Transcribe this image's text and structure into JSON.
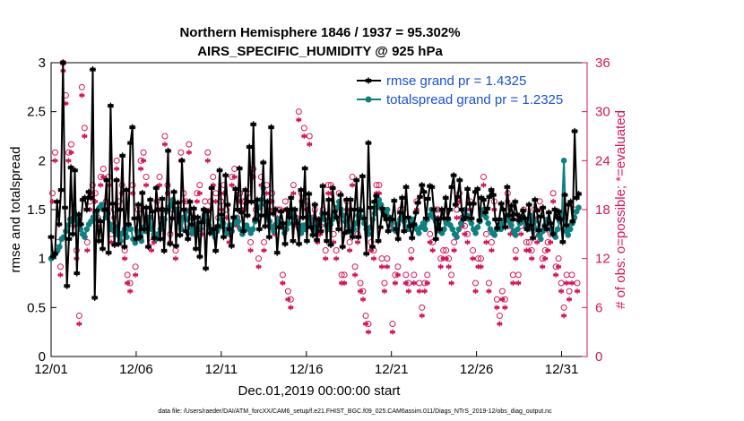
{
  "chart_data": {
    "type": "line",
    "title": "Northern Hemisphere 1846 / 1937 = 95.302%",
    "subtitle": "AIRS_SPECIFIC_HUMIDITY @ 925 hPa",
    "xlabel": "Dec.01,2019 00:00:00 start",
    "ylabel": "rmse and totalspread",
    "y2label": "# of obs: o=possible; *=evaluated",
    "xlim": [
      0,
      31.5
    ],
    "ylim": [
      0,
      3
    ],
    "y2lim": [
      0,
      36
    ],
    "x_ticks": [
      {
        "value": 0,
        "label": "12/01"
      },
      {
        "value": 5,
        "label": "12/06"
      },
      {
        "value": 10,
        "label": "12/11"
      },
      {
        "value": 15,
        "label": "12/16"
      },
      {
        "value": 20,
        "label": "12/21"
      },
      {
        "value": 25,
        "label": "12/26"
      },
      {
        "value": 30,
        "label": "12/31"
      }
    ],
    "y_ticks": [
      "0",
      "0.5",
      "1",
      "1.5",
      "2",
      "2.5",
      "3"
    ],
    "y2_ticks": [
      "0",
      "6",
      "12",
      "18",
      "24",
      "30",
      "36"
    ],
    "colors": {
      "rmse": "#000000",
      "spread": "#0f8080",
      "obs": "#d6145a",
      "legend_text": "#1a4fd6"
    },
    "series": [
      {
        "name": "rmse grand pr = 1.4325",
        "values": [
          1.22,
          1.02,
          1.05,
          1.58,
          1.35,
          1.7,
          3.0,
          1.52,
          0.72,
          1.2,
          1.93,
          1.25,
          1.9,
          0.85,
          1.45,
          1.35,
          1.6,
          1.62,
          1.5,
          1.68,
          1.62,
          2.93,
          0.6,
          1.49,
          1.18,
          1.38,
          1.1,
          1.5,
          1.8,
          1.06,
          2.56,
          1.56,
          1.14,
          1.8,
          1.15,
          1.5,
          2.05,
          1.12,
          1.7,
          1.35,
          2.18,
          2.34,
          1.41,
          1.2,
          1.55,
          1.22,
          1.67,
          1.3,
          1.52,
          1.12,
          1.6,
          1.48,
          1.21,
          1.72,
          1.5,
          1.2,
          1.61,
          1.08,
          1.5,
          2.1,
          1.15,
          1.41,
          1.68,
          1.13,
          1.57,
          1.24,
          2.0,
          1.5,
          1.28,
          1.2,
          1.58,
          1.35,
          1.51,
          1.1,
          1.42,
          1.02,
          1.37,
          1.5,
          0.9,
          1.48,
          1.26,
          1.72,
          1.3,
          1.08,
          1.33,
          1.9,
          1.45,
          1.22,
          1.85,
          1.55,
          1.3,
          1.13,
          1.42,
          1.71,
          1.5,
          1.92,
          1.47,
          1.28,
          1.7,
          1.44,
          2.14,
          1.58,
          2.37,
          1.4,
          1.6,
          1.3,
          1.44,
          1.98,
          1.33,
          1.58,
          1.22,
          2.34,
          1.46,
          1.5,
          1.06,
          1.32,
          1.48,
          1.36,
          1.15,
          1.5,
          1.42,
          1.62,
          1.18,
          1.5,
          1.36,
          1.15,
          1.7,
          1.42,
          1.92,
          1.18,
          1.66,
          1.32,
          1.24,
          1.55,
          1.19,
          1.4,
          1.28,
          1.74,
          1.46,
          1.18,
          1.6,
          1.14,
          1.72,
          1.48,
          1.42,
          1.3,
          1.65,
          1.12,
          1.26,
          1.6,
          1.28,
          1.6,
          1.22,
          1.5,
          1.8,
          1.22,
          1.49,
          1.84,
          1.41,
          1.05,
          2.18,
          1.52,
          1.12,
          1.58,
          1.64,
          1.18,
          1.32,
          1.51,
          1.44,
          1.4,
          1.28,
          1.41,
          1.4,
          1.59,
          1.3,
          1.2,
          1.47,
          1.62,
          1.28,
          1.73,
          1.42,
          1.33,
          1.21,
          1.35,
          1.47,
          1.57,
          1.63,
          1.75,
          1.68,
          1.41,
          1.61,
          1.74,
          1.73,
          1.5,
          1.2,
          1.4,
          1.3,
          1.5,
          1.41,
          1.62,
          1.41,
          1.5,
          1.73,
          1.85,
          1.55,
          1.63,
          1.8,
          1.5,
          1.4,
          1.42,
          1.71,
          1.56,
          1.41,
          1.56,
          1.68,
          1.71,
          1.39,
          1.62,
          1.6,
          1.47,
          1.51,
          1.63,
          1.7,
          1.65,
          1.4,
          1.31,
          1.4,
          1.56,
          1.5,
          1.32,
          1.73,
          1.44,
          1.54,
          1.4,
          1.58,
          1.45,
          1.39,
          1.42,
          1.49,
          1.41,
          1.3,
          1.55,
          1.34,
          1.21,
          1.6,
          1.49,
          1.29,
          1.43,
          1.52,
          1.33,
          1.3,
          1.47,
          1.36,
          1.25,
          1.5,
          1.42,
          1.48,
          1.4,
          1.17,
          1.65,
          1.34,
          1.55,
          1.58,
          1.38,
          2.3,
          1.62,
          1.66
        ]
      },
      {
        "name": "totalspread grand pr = 1.2325",
        "values": [
          1.0,
          1.02,
          1.05,
          1.08,
          1.12,
          1.2,
          1.22,
          1.28,
          1.34,
          1.4,
          1.38,
          1.48,
          1.42,
          1.35,
          1.3,
          1.25,
          1.22,
          1.3,
          1.35,
          1.38,
          1.42,
          1.47,
          1.4,
          1.52,
          1.55,
          1.5,
          1.42,
          1.46,
          1.35,
          1.3,
          1.28,
          1.32,
          1.24,
          1.18,
          1.26,
          1.3,
          1.22,
          1.34,
          1.3,
          1.2,
          1.16,
          1.28,
          1.22,
          1.18,
          1.32,
          1.28,
          1.36,
          1.42,
          1.3,
          1.24,
          1.2,
          1.25,
          1.3,
          1.35,
          1.4,
          1.48,
          1.52,
          1.55,
          1.6,
          1.5,
          1.45,
          1.38,
          1.3,
          1.42,
          1.48,
          1.4,
          1.32,
          1.26,
          1.3,
          1.24,
          1.36,
          1.3,
          1.38,
          1.45,
          1.38,
          1.34,
          1.3,
          1.26,
          1.22,
          1.28,
          1.32,
          1.4,
          1.36,
          1.3,
          1.26,
          1.34,
          1.28,
          1.35,
          1.42,
          1.38,
          1.3,
          1.25,
          1.3,
          1.34,
          1.3,
          1.26,
          1.3,
          1.38,
          1.45,
          1.52,
          1.6,
          1.72,
          1.55,
          1.42,
          1.38,
          1.32,
          1.28,
          1.35,
          1.4,
          1.36,
          1.32,
          1.26,
          1.3,
          1.36,
          1.44,
          1.5,
          1.42,
          1.38,
          1.3,
          1.26,
          1.34,
          1.3,
          1.36,
          1.42,
          1.38,
          1.32,
          1.28,
          1.36,
          1.4,
          1.46,
          1.4,
          1.34,
          1.3,
          1.35,
          1.4,
          1.44,
          1.52,
          1.58,
          1.5,
          1.44,
          1.38,
          1.34,
          1.3,
          1.26,
          1.3,
          1.36,
          1.44,
          1.5,
          1.42,
          1.36,
          1.3,
          1.25,
          1.32,
          1.4,
          1.46,
          1.52,
          1.6,
          1.55,
          1.48,
          1.44,
          1.5,
          1.42,
          1.36,
          1.3,
          1.28,
          1.35,
          1.4,
          1.45,
          1.38,
          1.32,
          1.3,
          1.36,
          1.4,
          1.34,
          1.3,
          1.26,
          1.32,
          1.36,
          1.3,
          1.4,
          1.44,
          1.5,
          1.42,
          1.38,
          1.32,
          1.28,
          1.26,
          1.3,
          1.36,
          1.4,
          1.34,
          1.3,
          1.25,
          1.22,
          1.3,
          1.36,
          1.42,
          1.5,
          1.44,
          1.4,
          1.36,
          1.3,
          1.26,
          1.32,
          1.38,
          1.45,
          1.5,
          1.42,
          1.36,
          1.3,
          1.26,
          1.24,
          1.3,
          1.34,
          1.3,
          1.36,
          1.4,
          1.44,
          1.38,
          1.34,
          1.28,
          1.24,
          1.3,
          1.36,
          1.42,
          1.38,
          1.32,
          1.3,
          1.4,
          1.44,
          1.38,
          1.3,
          1.24,
          1.2,
          1.28,
          1.34,
          1.4,
          1.36,
          1.3,
          1.26,
          1.22,
          1.3,
          1.38,
          1.44,
          2.0,
          1.28,
          1.24,
          1.3,
          1.36,
          1.42,
          1.48,
          1.52
        ]
      }
    ],
    "obs_possible": [
      20,
      25,
      14,
      11,
      36,
      32,
      25,
      26,
      17,
      13,
      5,
      33,
      28,
      14,
      19,
      21,
      20,
      17,
      22,
      23,
      19,
      22,
      15,
      18,
      24,
      19,
      21,
      13,
      10,
      9,
      21,
      11,
      18,
      24,
      25,
      22,
      17,
      14,
      15,
      19,
      22,
      18,
      27,
      21,
      15,
      18,
      13,
      18,
      25,
      20,
      19,
      26,
      16,
      17,
      20,
      21,
      16,
      19,
      25,
      19,
      22,
      20,
      17,
      19,
      21,
      18,
      15,
      22,
      23,
      17,
      20,
      19,
      19,
      20,
      14,
      23,
      18,
      12,
      22,
      14,
      21,
      19,
      20,
      16,
      18,
      18,
      10,
      19,
      8,
      7,
      21,
      17,
      30,
      20,
      28,
      19,
      27,
      17,
      18,
      15,
      16,
      18,
      13,
      21,
      21,
      15,
      13,
      20,
      10,
      10,
      19,
      14,
      22,
      11,
      15,
      9,
      8,
      5,
      4,
      14,
      13,
      21,
      21,
      12,
      9,
      12,
      17,
      4,
      10,
      11,
      18,
      18,
      10,
      9,
      13,
      10,
      19,
      9,
      6,
      9,
      10,
      15,
      14,
      18,
      18,
      12,
      13,
      13,
      12,
      10,
      14,
      18,
      20,
      17,
      16,
      15,
      19,
      13,
      9,
      12,
      12,
      22,
      15,
      9,
      14,
      19,
      7,
      5,
      8,
      7,
      20,
      16,
      10,
      13,
      10,
      16,
      18,
      14,
      14,
      13,
      18,
      15,
      19,
      12,
      13,
      14,
      15,
      20,
      11,
      12,
      9,
      6,
      10,
      8,
      10,
      18,
      9
    ],
    "obs_evaluated": [
      19,
      24,
      13,
      10,
      35,
      31,
      24,
      25,
      16,
      12,
      4,
      32,
      27,
      13,
      18,
      20,
      19,
      16,
      21,
      22,
      18,
      21,
      14,
      17,
      23,
      18,
      20,
      12,
      9,
      8,
      20,
      10,
      17,
      23,
      24,
      21,
      16,
      13,
      14,
      18,
      21,
      17,
      26,
      20,
      14,
      17,
      12,
      17,
      24,
      19,
      18,
      25,
      15,
      16,
      19,
      20,
      15,
      18,
      24,
      18,
      21,
      19,
      16,
      18,
      20,
      17,
      14,
      21,
      22,
      16,
      19,
      18,
      18,
      19,
      13,
      22,
      17,
      11,
      21,
      13,
      20,
      18,
      19,
      15,
      17,
      17,
      9,
      18,
      7,
      6,
      20,
      16,
      29,
      19,
      27,
      18,
      26,
      16,
      17,
      14,
      15,
      17,
      12,
      20,
      20,
      14,
      12,
      19,
      9,
      9,
      18,
      13,
      21,
      10,
      14,
      8,
      7,
      4,
      3,
      13,
      12,
      20,
      20,
      11,
      8,
      11,
      16,
      3,
      9,
      10,
      17,
      17,
      9,
      8,
      12,
      9,
      18,
      8,
      5,
      8,
      9,
      14,
      13,
      17,
      17,
      11,
      12,
      12,
      11,
      9,
      13,
      17,
      19,
      16,
      15,
      14,
      18,
      12,
      8,
      11,
      11,
      21,
      14,
      8,
      13,
      18,
      6,
      4,
      7,
      6,
      19,
      15,
      9,
      12,
      9,
      15,
      17,
      13,
      13,
      12,
      17,
      14,
      18,
      11,
      12,
      13,
      14,
      19,
      10,
      11,
      8,
      5,
      9,
      7,
      9,
      17,
      8
    ],
    "legend_position": "top-right",
    "grid": false
  },
  "footer": "data file: /Users/raeder/DAI/ATM_forcXX/CAM6_setup/f.e21.FHIST_BGC.f09_025.CAM6assim.011/Diags_NTrS_2019-12/obs_diag_output.nc"
}
